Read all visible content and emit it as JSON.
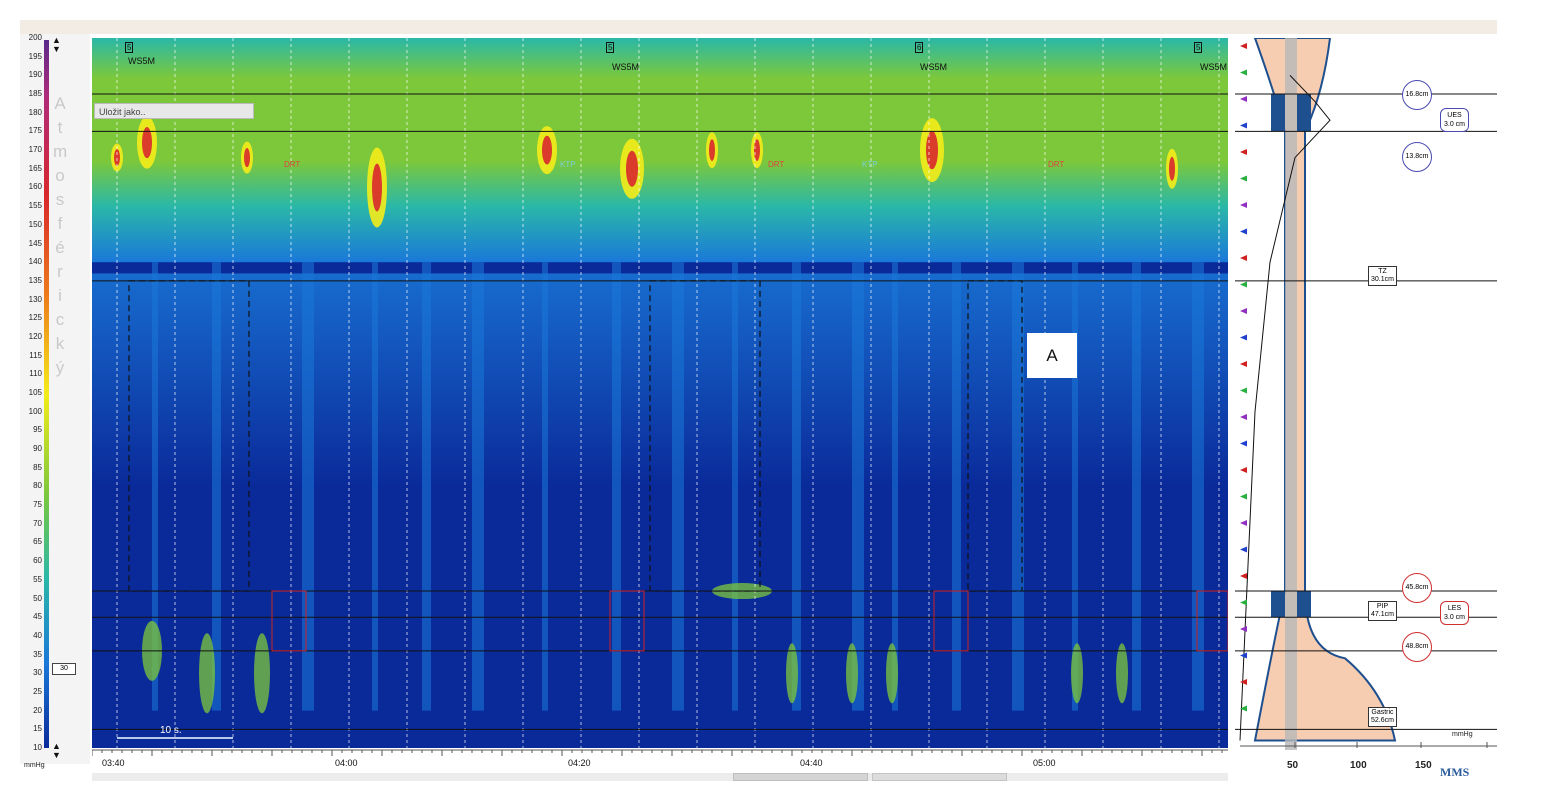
{
  "chart_data": {
    "type": "heatmap",
    "title": "",
    "ylabel": "Atmosférický",
    "y_unit": "mmHg",
    "ylim": [
      10,
      200
    ],
    "y_ticks": [
      200,
      195,
      190,
      185,
      180,
      175,
      170,
      165,
      160,
      155,
      150,
      145,
      140,
      135,
      130,
      125,
      120,
      115,
      110,
      105,
      100,
      95,
      90,
      85,
      80,
      75,
      70,
      65,
      60,
      55,
      50,
      45,
      40,
      35,
      30,
      25,
      20,
      15,
      10
    ],
    "x_ticks": [
      "03:40",
      "04:00",
      "04:20",
      "04:40",
      "05:00"
    ],
    "colorscale": [
      "#0a2a9a",
      "#1a78d8",
      "#2ab8a8",
      "#7cc83a",
      "#f4ec1a",
      "#ee7a1a",
      "#d8282c",
      "#b02a7a"
    ],
    "reference_lines_y": [
      185,
      175,
      135,
      52,
      45,
      36,
      15
    ],
    "events": [
      "WS5M",
      "WS5M",
      "WS5M",
      "WS5M"
    ],
    "event_numbers": [
      "5",
      "5",
      "6",
      "5"
    ],
    "phase_labels": [
      "DRT",
      "KTP",
      "DRT",
      "KTP",
      "DRT"
    ],
    "annotation": "A",
    "scale_bar": "10 s.",
    "save_as": "Uložit jako..",
    "current_marker": "30",
    "side_profile": {
      "x_ticks": [
        50,
        100,
        150
      ],
      "x_unit": "mmHg",
      "landmarks": [
        {
          "label": "TZ",
          "value": "30.1cm"
        },
        {
          "label": "PIP",
          "value": "47.1cm"
        },
        {
          "label": "Gastric",
          "value": "52.6cm"
        }
      ],
      "sphincters": [
        {
          "name": "UES",
          "length": "3.0 cm",
          "upper": "16.8cm",
          "lower": "13.8cm"
        },
        {
          "name": "LES",
          "length": "3.0 cm",
          "upper": "45.8cm",
          "lower": "48.8cm"
        }
      ]
    },
    "logo": "MMS"
  }
}
